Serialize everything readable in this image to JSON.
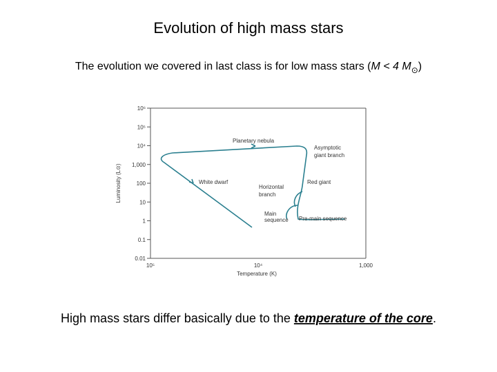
{
  "title": "Evolution of high mass stars",
  "subtitle": {
    "text": "The evolution we covered in last class is for low mass stars (",
    "italic": "M < 4 M",
    "subscript": "⊙",
    "end": ")"
  },
  "figure": {
    "y_axis_label": "Luminosity (L⊙)",
    "x_axis_label": "Temperature (K)",
    "y_ticks": [
      "10⁶",
      "10⁵",
      "10⁴",
      "1,000",
      "100",
      "10",
      "1",
      "0.1",
      "0.01"
    ],
    "x_ticks": [
      "10⁵",
      "10⁴",
      "1,000"
    ],
    "labels": {
      "planetary_nebula": "Planetary nebula",
      "asymptotic_1": "Asymptotic",
      "asymptotic_2": "giant branch",
      "white_dwarf": "White dwarf",
      "horizontal_1": "Horizontal",
      "horizontal_2": "branch",
      "red_giant": "Red giant",
      "main_1": "Main",
      "main_2": "sequence",
      "pre_main": "Pre-main sequence"
    }
  },
  "footer": {
    "text": "High mass stars differ basically due to the ",
    "emphasis": "temperature of the core",
    "end": "."
  }
}
